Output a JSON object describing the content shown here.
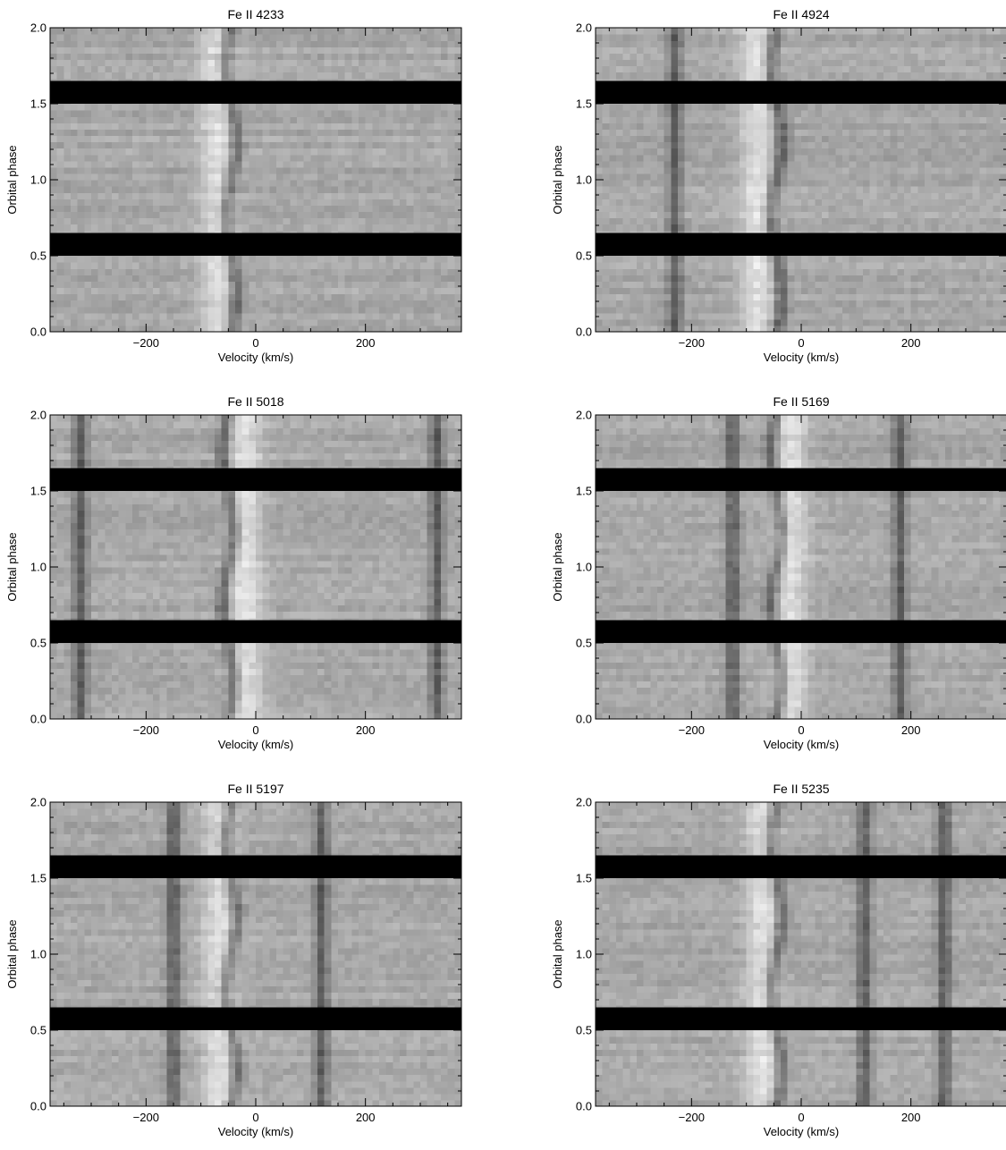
{
  "figure": {
    "xlabel": "Velocity (km/s)",
    "ylabel": "Orbital phase"
  },
  "chart_data": [
    {
      "type": "heatmap",
      "title": "Fe II 4233",
      "xlabel": "Velocity (km/s)",
      "ylabel": "Orbital phase",
      "xlim": [
        -375,
        375
      ],
      "ylim": [
        0,
        2
      ],
      "xticks": [
        -200,
        0,
        200
      ],
      "yticks": [
        0.0,
        0.5,
        1.0,
        1.5,
        2.0
      ],
      "masked_phase_bands": [
        [
          0.5,
          0.65
        ],
        [
          1.5,
          1.65
        ]
      ],
      "features": [
        {
          "kind": "absorption",
          "velocity": -45,
          "variation": "sinusoidal"
        },
        {
          "kind": "emission",
          "velocity": -70
        }
      ]
    },
    {
      "type": "heatmap",
      "title": "Fe II 4924",
      "xlabel": "Velocity (km/s)",
      "ylabel": "Orbital phase",
      "xlim": [
        -375,
        375
      ],
      "ylim": [
        0,
        2
      ],
      "xticks": [
        -200,
        0,
        200
      ],
      "yticks": [
        0.0,
        0.5,
        1.0,
        1.5,
        2.0
      ],
      "masked_phase_bands": [
        [
          0.5,
          0.65
        ],
        [
          1.5,
          1.65
        ]
      ],
      "features": [
        {
          "kind": "absorption",
          "velocity": -45,
          "variation": "sinusoidal"
        },
        {
          "kind": "emission",
          "velocity": -80
        },
        {
          "kind": "absorption",
          "velocity": -230
        }
      ]
    },
    {
      "type": "heatmap",
      "title": "Fe II 5018",
      "xlabel": "Velocity (km/s)",
      "ylabel": "Orbital phase",
      "xlim": [
        -375,
        375
      ],
      "ylim": [
        0,
        2
      ],
      "xticks": [
        -200,
        0,
        200
      ],
      "yticks": [
        0.0,
        0.5,
        1.0,
        1.5,
        2.0
      ],
      "masked_phase_bands": [
        [
          0.5,
          0.65
        ],
        [
          1.5,
          1.65
        ]
      ],
      "features": [
        {
          "kind": "absorption",
          "velocity": -50,
          "variation": "sinusoidal"
        },
        {
          "kind": "emission",
          "velocity": -20
        },
        {
          "kind": "absorption",
          "velocity": -320
        },
        {
          "kind": "absorption",
          "velocity": 330
        }
      ]
    },
    {
      "type": "heatmap",
      "title": "Fe II 5169",
      "xlabel": "Velocity (km/s)",
      "ylabel": "Orbital phase",
      "xlim": [
        -375,
        375
      ],
      "ylim": [
        0,
        2
      ],
      "xticks": [
        -200,
        0,
        200
      ],
      "yticks": [
        0.0,
        0.5,
        1.0,
        1.5,
        2.0
      ],
      "masked_phase_bands": [
        [
          0.5,
          0.65
        ],
        [
          1.5,
          1.65
        ]
      ],
      "features": [
        {
          "kind": "absorption",
          "velocity": -45,
          "variation": "sinusoidal"
        },
        {
          "kind": "absorption",
          "velocity": -125
        },
        {
          "kind": "absorption",
          "velocity": 180
        },
        {
          "kind": "emission",
          "velocity": -20
        }
      ]
    },
    {
      "type": "heatmap",
      "title": "Fe II 5197",
      "xlabel": "Velocity (km/s)",
      "ylabel": "Orbital phase",
      "xlim": [
        -375,
        375
      ],
      "ylim": [
        0,
        2
      ],
      "xticks": [
        -200,
        0,
        200
      ],
      "yticks": [
        0.0,
        0.5,
        1.0,
        1.5,
        2.0
      ],
      "masked_phase_bands": [
        [
          0.5,
          0.65
        ],
        [
          1.5,
          1.65
        ]
      ],
      "features": [
        {
          "kind": "absorption",
          "velocity": -45,
          "variation": "sinusoidal"
        },
        {
          "kind": "emission",
          "velocity": -65
        },
        {
          "kind": "absorption",
          "velocity": -150
        },
        {
          "kind": "absorption",
          "velocity": 120
        }
      ]
    },
    {
      "type": "heatmap",
      "title": "Fe II 5235",
      "xlabel": "Velocity (km/s)",
      "ylabel": "Orbital phase",
      "xlim": [
        -375,
        375
      ],
      "ylim": [
        0,
        2
      ],
      "xticks": [
        -200,
        0,
        200
      ],
      "yticks": [
        0.0,
        0.5,
        1.0,
        1.5,
        2.0
      ],
      "masked_phase_bands": [
        [
          0.5,
          0.65
        ],
        [
          1.5,
          1.65
        ]
      ],
      "features": [
        {
          "kind": "absorption",
          "velocity": -45,
          "variation": "sinusoidal"
        },
        {
          "kind": "absorption",
          "velocity": 115
        },
        {
          "kind": "absorption",
          "velocity": 260
        },
        {
          "kind": "emission",
          "velocity": -70
        }
      ]
    }
  ]
}
